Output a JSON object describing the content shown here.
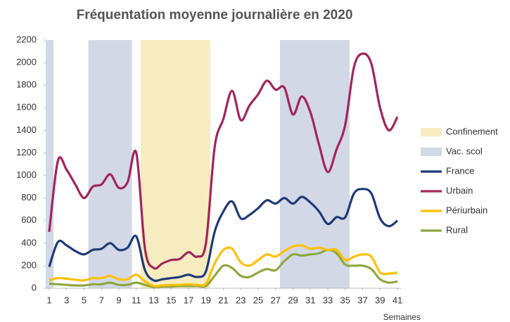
{
  "chart_data": {
    "type": "line",
    "title": "Fréquentation moyenne journalière en 2020",
    "x_label": "Semaines",
    "x": [
      1,
      2,
      3,
      4,
      5,
      6,
      7,
      8,
      9,
      10,
      11,
      12,
      13,
      14,
      15,
      16,
      17,
      18,
      19,
      20,
      21,
      22,
      23,
      24,
      25,
      26,
      27,
      28,
      29,
      30,
      31,
      32,
      33,
      34,
      35,
      36,
      37,
      38,
      39,
      40,
      41
    ],
    "xlim": [
      0.6,
      41.4
    ],
    "xticks": [
      1,
      3,
      5,
      7,
      9,
      11,
      13,
      15,
      17,
      19,
      21,
      23,
      25,
      27,
      29,
      31,
      33,
      35,
      37,
      39,
      41
    ],
    "ylim": [
      0,
      2200
    ],
    "yticks": [
      0,
      200,
      400,
      600,
      800,
      1000,
      1200,
      1400,
      1600,
      1800,
      2000,
      2200
    ],
    "legend": "right",
    "bands": [
      {
        "name": "Confinement",
        "color": "#f7ecc0",
        "ranges": [
          [
            11.5,
            19.5
          ]
        ]
      },
      {
        "name": "Vac. scol",
        "color": "#d3d8e6",
        "ranges": [
          [
            0.6,
            1.5
          ],
          [
            5.5,
            10.5
          ],
          [
            27.5,
            35.5
          ]
        ]
      }
    ],
    "series": [
      {
        "name": "France",
        "color": "#1f3a7a",
        "values": [
          190,
          410,
          380,
          330,
          300,
          340,
          350,
          400,
          340,
          360,
          460,
          160,
          70,
          80,
          90,
          100,
          120,
          100,
          150,
          500,
          680,
          770,
          620,
          650,
          710,
          780,
          750,
          800,
          750,
          810,
          760,
          680,
          570,
          630,
          630,
          840,
          880,
          840,
          620,
          550,
          600
        ]
      },
      {
        "name": "Urbain",
        "color": "#a3245a",
        "values": [
          500,
          1130,
          1050,
          920,
          800,
          900,
          920,
          1010,
          890,
          940,
          1200,
          350,
          180,
          220,
          250,
          260,
          320,
          280,
          400,
          1250,
          1500,
          1750,
          1490,
          1620,
          1720,
          1840,
          1760,
          1780,
          1540,
          1700,
          1560,
          1270,
          1030,
          1230,
          1450,
          1960,
          2080,
          1990,
          1600,
          1400,
          1520
        ]
      },
      {
        "name": "Périurbain",
        "color": "#ffc000",
        "values": [
          70,
          90,
          85,
          75,
          70,
          90,
          90,
          110,
          80,
          80,
          120,
          60,
          20,
          25,
          30,
          30,
          35,
          30,
          40,
          220,
          340,
          350,
          230,
          200,
          250,
          300,
          280,
          330,
          370,
          380,
          350,
          360,
          340,
          340,
          250,
          280,
          300,
          280,
          140,
          130,
          140
        ]
      },
      {
        "name": "Rural",
        "color": "#8ea83e",
        "values": [
          40,
          35,
          30,
          25,
          25,
          35,
          35,
          50,
          30,
          30,
          50,
          30,
          10,
          15,
          15,
          20,
          20,
          20,
          20,
          110,
          200,
          180,
          110,
          100,
          140,
          170,
          160,
          240,
          300,
          290,
          300,
          310,
          340,
          310,
          210,
          200,
          200,
          170,
          80,
          50,
          60
        ]
      }
    ]
  }
}
